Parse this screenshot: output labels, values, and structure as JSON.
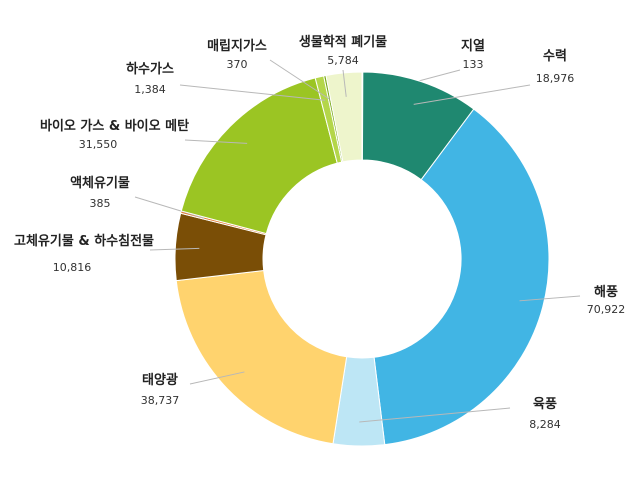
{
  "chart_data": {
    "type": "pie",
    "donut": true,
    "legend": "none",
    "categories": [
      "지열",
      "수력",
      "해풍",
      "육풍",
      "태양광",
      "고체유기물 & 하수침전물",
      "액체유기물",
      "바이오 가스 & 바이오 메탄",
      "하수가스",
      "매립지가스",
      "생물학적 폐기물"
    ],
    "values": [
      133,
      18976,
      70922,
      8284,
      38737,
      10816,
      385,
      31550,
      1384,
      370,
      5784
    ],
    "value_labels": [
      "133",
      "18,976",
      "70,922",
      "8,284",
      "38,737",
      "10,816",
      "385",
      "31,550",
      "1,384",
      "370",
      "5,784"
    ],
    "colors": [
      "#1f8870",
      "#1f8870",
      "#41b5e4",
      "#bde6f5",
      "#ffd36e",
      "#7a4e06",
      "#e57a2e",
      "#9bc523",
      "#b4d64a",
      "#79a91b",
      "#eef5cc"
    ]
  }
}
